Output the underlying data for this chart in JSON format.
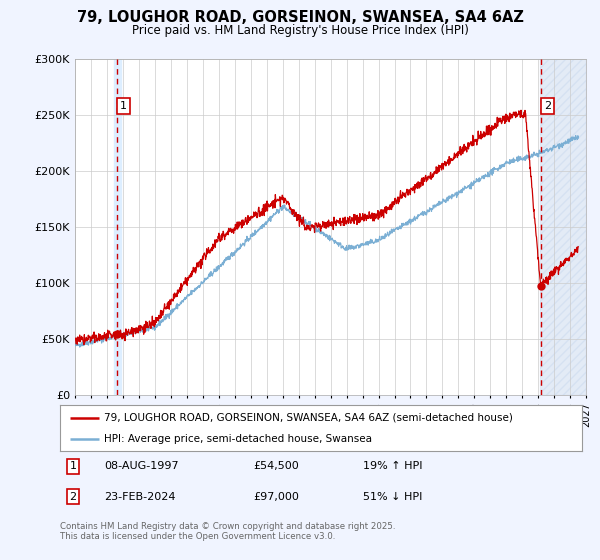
{
  "title": "79, LOUGHOR ROAD, GORSEINON, SWANSEA, SA4 6AZ",
  "subtitle": "Price paid vs. HM Land Registry's House Price Index (HPI)",
  "bg_color": "#f0f4ff",
  "plot_bg_color": "#ffffff",
  "grid_color": "#cccccc",
  "red_line_color": "#cc0000",
  "blue_line_color": "#7bafd4",
  "marker1_date": 1997.6,
  "marker2_date": 2024.15,
  "marker1_price": 54500,
  "marker2_price": 97000,
  "vline_color": "#cc0000",
  "shade_color": "#ddeeff",
  "hatch_color": "#c8d8ee",
  "xmin": 1995,
  "xmax": 2027,
  "ymin": 0,
  "ymax": 300000,
  "yticks": [
    0,
    50000,
    100000,
    150000,
    200000,
    250000,
    300000
  ],
  "ytick_labels": [
    "£0",
    "£50K",
    "£100K",
    "£150K",
    "£200K",
    "£250K",
    "£300K"
  ],
  "legend_label_red": "79, LOUGHOR ROAD, GORSEINON, SWANSEA, SA4 6AZ (semi-detached house)",
  "legend_label_blue": "HPI: Average price, semi-detached house, Swansea",
  "sale1_label": "1",
  "sale1_date": "08-AUG-1997",
  "sale1_price": "£54,500",
  "sale1_hpi": "19% ↑ HPI",
  "sale2_label": "2",
  "sale2_date": "23-FEB-2024",
  "sale2_price": "£97,000",
  "sale2_hpi": "51% ↓ HPI",
  "footer": "Contains HM Land Registry data © Crown copyright and database right 2025.\nThis data is licensed under the Open Government Licence v3.0."
}
